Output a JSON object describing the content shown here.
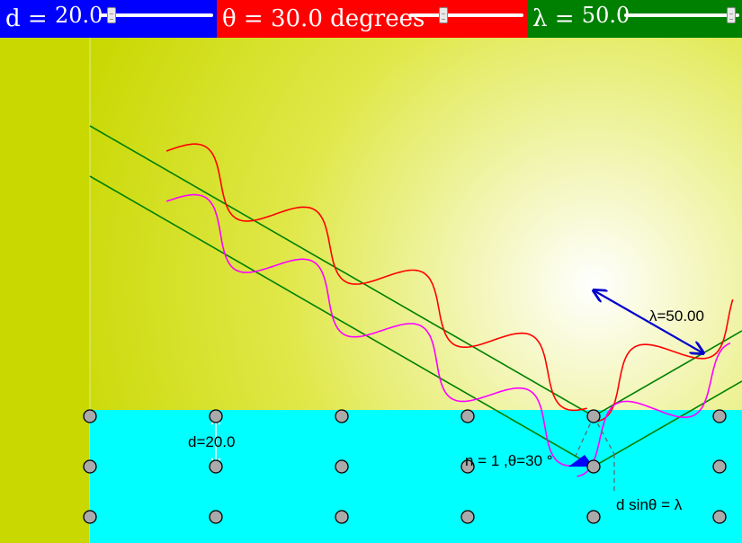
{
  "controls": {
    "d": {
      "label": "d = ",
      "value": "20.0",
      "slider_fraction": 0.08
    },
    "theta": {
      "label": "θ = ",
      "value": "30.0",
      "unit": " degrees",
      "slider_fraction": 0.28
    },
    "lambda": {
      "label": "λ = ",
      "value": "50.0",
      "slider_fraction": 0.97
    }
  },
  "diagram": {
    "wavelength_label": "λ=50.00",
    "spacing_label": "d=20.0",
    "order_label": "n = 1 ,θ=30 °",
    "bragg_label": "d sinθ = λ"
  },
  "colors": {
    "panel_d": "#0000ff",
    "panel_theta": "#ff0000",
    "panel_lambda": "#008000",
    "crystal": "#00ffff",
    "background": "#c8d800",
    "ray": "#008000",
    "wave_top": "#ff0000",
    "wave_bottom": "#ff00ff",
    "arrow": "#0000cc",
    "atom": "#aaaaaa"
  }
}
